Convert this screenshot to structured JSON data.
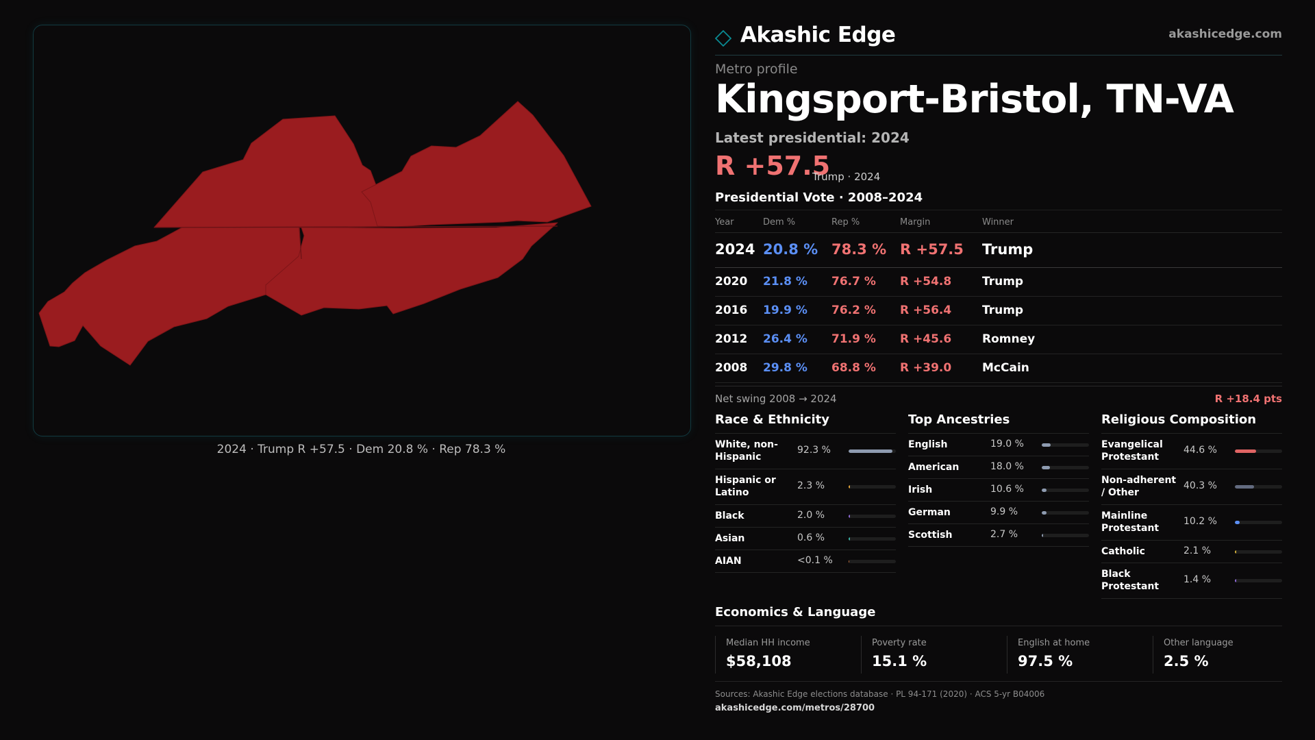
{
  "map": {
    "caption": "2024 · Trump R +57.5 · Dem 20.8 % · Rep 78.3 %",
    "fill_color": "#9a1c1f"
  },
  "brand": {
    "name": "Akashic Edge",
    "url": "akashicedge.com",
    "logo_icon": "diamond-outline",
    "accent": "#0a8b93"
  },
  "profile": {
    "eyebrow": "Metro profile",
    "title": "Kingsport-Bristol, TN-VA",
    "latest_label": "Latest presidential: 2024",
    "latest_margin": "R +57.5",
    "latest_sub": "Trump · 2024"
  },
  "vote_table": {
    "title": "Presidential Vote · 2008–2024",
    "headers": {
      "year": "Year",
      "dem": "Dem %",
      "rep": "Rep %",
      "margin": "Margin",
      "winner": "Winner"
    },
    "rows": [
      {
        "year": "2024",
        "dem": "20.8 %",
        "rep": "78.3 %",
        "margin": "R +57.5",
        "winner": "Trump"
      },
      {
        "year": "2020",
        "dem": "21.8 %",
        "rep": "76.7 %",
        "margin": "R +54.8",
        "winner": "Trump"
      },
      {
        "year": "2016",
        "dem": "19.9 %",
        "rep": "76.2 %",
        "margin": "R +56.4",
        "winner": "Trump"
      },
      {
        "year": "2012",
        "dem": "26.4 %",
        "rep": "71.9 %",
        "margin": "R +45.6",
        "winner": "Romney"
      },
      {
        "year": "2008",
        "dem": "29.8 %",
        "rep": "68.8 %",
        "margin": "R +39.0",
        "winner": "McCain"
      }
    ]
  },
  "swing": {
    "label": "Net swing 2008 → 2024",
    "value": "R +18.4 pts"
  },
  "race": {
    "title": "Race & Ethnicity",
    "items": [
      {
        "label": "White, non-Hispanic",
        "value": "92.3 %",
        "share": 0.923,
        "color": "#8e9bb0"
      },
      {
        "label": "Hispanic or Latino",
        "value": "2.3 %",
        "share": 0.023,
        "color": "#e3a43a"
      },
      {
        "label": "Black",
        "value": "2.0 %",
        "share": 0.02,
        "color": "#8f6bd8"
      },
      {
        "label": "Asian",
        "value": "0.6 %",
        "share": 0.006,
        "color": "#3cb4a8"
      },
      {
        "label": "AIAN",
        "value": "<0.1 %",
        "share": 0.0,
        "color": "#c06c3a"
      }
    ]
  },
  "ancestry": {
    "title": "Top Ancestries",
    "items": [
      {
        "label": "English",
        "value": "19.0 %",
        "share": 0.19,
        "color": "#8e9bb0"
      },
      {
        "label": "American",
        "value": "18.0 %",
        "share": 0.18,
        "color": "#8e9bb0"
      },
      {
        "label": "Irish",
        "value": "10.6 %",
        "share": 0.106,
        "color": "#8e9bb0"
      },
      {
        "label": "German",
        "value": "9.9 %",
        "share": 0.099,
        "color": "#8e9bb0"
      },
      {
        "label": "Scottish",
        "value": "2.7 %",
        "share": 0.027,
        "color": "#8e9bb0"
      }
    ]
  },
  "religion": {
    "title": "Religious Composition",
    "items": [
      {
        "label": "Evangelical Protestant",
        "value": "44.6 %",
        "share": 0.446,
        "color": "#e06464"
      },
      {
        "label": "Non-adherent / Other",
        "value": "40.3 %",
        "share": 0.403,
        "color": "#636b80"
      },
      {
        "label": "Mainline Protestant",
        "value": "10.2 %",
        "share": 0.102,
        "color": "#5b8ff5"
      },
      {
        "label": "Catholic",
        "value": "2.1 %",
        "share": 0.021,
        "color": "#d4b13a"
      },
      {
        "label": "Black Protestant",
        "value": "1.4 %",
        "share": 0.014,
        "color": "#8f6bd8"
      }
    ]
  },
  "economics": {
    "title": "Economics & Language",
    "cells": [
      {
        "label": "Median HH income",
        "value": "$58,108"
      },
      {
        "label": "Poverty rate",
        "value": "15.1 %"
      },
      {
        "label": "English at home",
        "value": "97.5 %"
      },
      {
        "label": "Other language",
        "value": "2.5 %"
      }
    ]
  },
  "footer": {
    "sources": "Sources: Akashic Edge elections database · PL 94-171 (2020) · ACS 5-yr B04006",
    "url": "akashicedge.com/metros/28700"
  }
}
